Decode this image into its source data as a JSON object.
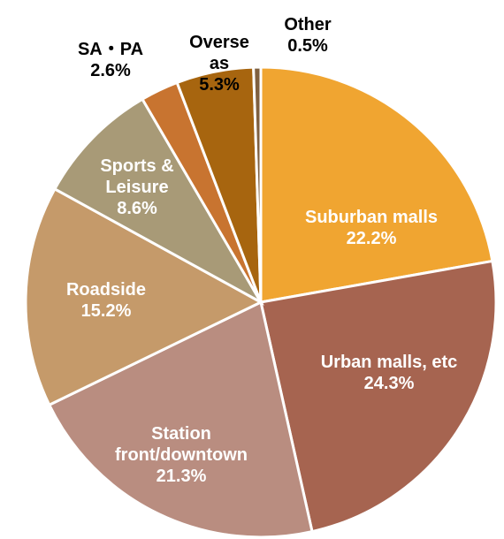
{
  "chart_data": {
    "type": "pie",
    "categories": [
      "Suburban malls",
      "Urban malls, etc",
      "Station front/downtown",
      "Roadside",
      "Sports & Leisure",
      "SA・PA",
      "Overseas",
      "Other"
    ],
    "values": [
      22.2,
      24.3,
      21.3,
      15.2,
      8.6,
      2.6,
      5.3,
      0.5
    ],
    "value_labels": [
      "22.2%",
      "24.3%",
      "21.3%",
      "15.2%",
      "8.6%",
      "2.6%",
      "5.3%",
      "0.5%"
    ],
    "colors": [
      "#f0a531",
      "#a66450",
      "#b98d80",
      "#c59a6a",
      "#a89a77",
      "#c87430",
      "#a7650f",
      "#7f6040"
    ]
  }
}
